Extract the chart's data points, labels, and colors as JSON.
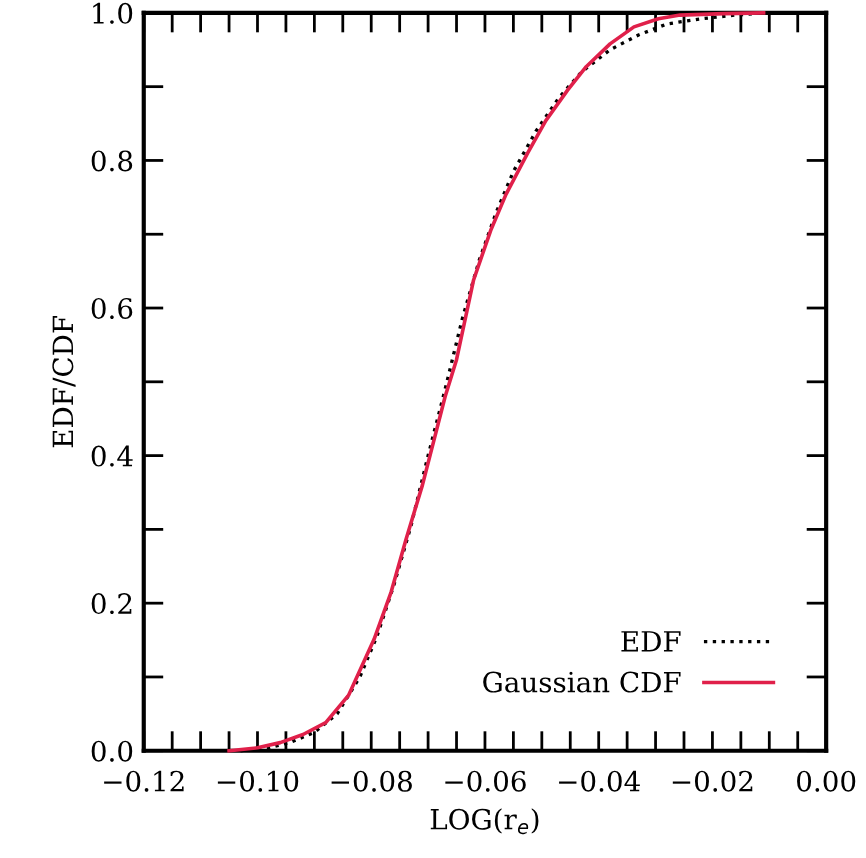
{
  "chart_data": {
    "type": "line",
    "xlabel": "LOG(r$_{e}$)",
    "ylabel": "EDF/CDF",
    "xlim": [
      -0.12,
      0.0
    ],
    "ylim": [
      0.0,
      1.0
    ],
    "xticks": [
      {
        "value": -0.12,
        "label": "−0.12"
      },
      {
        "value": -0.115,
        "label": null
      },
      {
        "value": -0.11,
        "label": null
      },
      {
        "value": -0.105,
        "label": null
      },
      {
        "value": -0.1,
        "label": "−0.10"
      },
      {
        "value": -0.095,
        "label": null
      },
      {
        "value": -0.09,
        "label": null
      },
      {
        "value": -0.085,
        "label": null
      },
      {
        "value": -0.08,
        "label": "−0.08"
      },
      {
        "value": -0.075,
        "label": null
      },
      {
        "value": -0.07,
        "label": null
      },
      {
        "value": -0.065,
        "label": null
      },
      {
        "value": -0.06,
        "label": "−0.06"
      },
      {
        "value": -0.055,
        "label": null
      },
      {
        "value": -0.05,
        "label": null
      },
      {
        "value": -0.045,
        "label": null
      },
      {
        "value": -0.04,
        "label": "−0.04"
      },
      {
        "value": -0.035,
        "label": null
      },
      {
        "value": -0.03,
        "label": null
      },
      {
        "value": -0.025,
        "label": null
      },
      {
        "value": -0.02,
        "label": "−0.02"
      },
      {
        "value": -0.015,
        "label": null
      },
      {
        "value": -0.01,
        "label": null
      },
      {
        "value": -0.005,
        "label": null
      },
      {
        "value": 0.0,
        "label": "0.00"
      }
    ],
    "yticks": [
      {
        "value": 0.0,
        "label": "0.0"
      },
      {
        "value": 0.1,
        "label": null
      },
      {
        "value": 0.2,
        "label": "0.2"
      },
      {
        "value": 0.3,
        "label": null
      },
      {
        "value": 0.4,
        "label": "0.4"
      },
      {
        "value": 0.5,
        "label": null
      },
      {
        "value": 0.6,
        "label": "0.6"
      },
      {
        "value": 0.7,
        "label": null
      },
      {
        "value": 0.8,
        "label": "0.8"
      },
      {
        "value": 0.9,
        "label": null
      },
      {
        "value": 1.0,
        "label": "1.0"
      }
    ],
    "grid": false,
    "legend": "bottom right",
    "series": [
      {
        "name": "EDF",
        "color": "#000000",
        "line_style": "dotted",
        "x": [
          -0.103,
          -0.098,
          -0.094,
          -0.09,
          -0.086,
          -0.082,
          -0.079,
          -0.076,
          -0.073,
          -0.07,
          -0.067,
          -0.064,
          -0.061,
          -0.058,
          -0.055,
          -0.051,
          -0.047,
          -0.043,
          -0.038,
          -0.033,
          -0.028,
          -0.022,
          -0.016,
          -0.011
        ],
        "values": [
          0.0,
          0.004,
          0.012,
          0.025,
          0.05,
          0.1,
          0.155,
          0.225,
          0.305,
          0.4,
          0.49,
          0.585,
          0.665,
          0.73,
          0.785,
          0.84,
          0.885,
          0.92,
          0.95,
          0.97,
          0.985,
          0.992,
          0.997,
          1.0
        ]
      },
      {
        "name": "Gaussian CDF",
        "color": "#e0204a",
        "line_style": "solid",
        "x": [
          -0.105,
          -0.1,
          -0.096,
          -0.092,
          -0.088,
          -0.084,
          -0.0795,
          -0.0765,
          -0.0739,
          -0.071,
          -0.069,
          -0.067,
          -0.065,
          -0.062,
          -0.059,
          -0.0563,
          -0.0525,
          -0.0493,
          -0.0455,
          -0.0422,
          -0.038,
          -0.0338,
          -0.0295,
          -0.0257,
          -0.018,
          -0.011
        ],
        "values": [
          0.0,
          0.004,
          0.011,
          0.022,
          0.038,
          0.075,
          0.151,
          0.215,
          0.286,
          0.36,
          0.42,
          0.48,
          0.53,
          0.638,
          0.705,
          0.754,
          0.81,
          0.854,
          0.895,
          0.927,
          0.958,
          0.981,
          0.992,
          0.997,
          0.999,
          1.0
        ]
      }
    ]
  }
}
